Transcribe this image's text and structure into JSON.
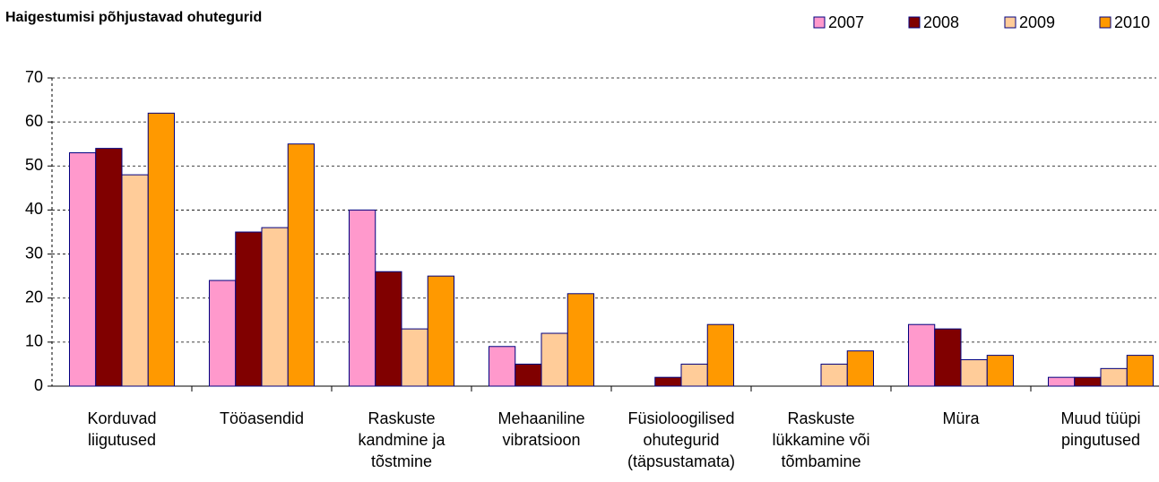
{
  "chart_data": {
    "type": "bar",
    "title": "Haigestumisi põhjustavad ohutegurid",
    "categories": [
      "Korduvad\nliigutused",
      "Tööasendid",
      "Raskuste\nkandmine ja\ntõstmine",
      "Mehaaniline\nvibratsioon",
      "Füsioloogilised\nohutegurid\n(täpsustamata)",
      "Raskuste\nlükkamine või\ntõmbamine",
      "Müra",
      "Muud tüüpi\npingutused"
    ],
    "series": [
      {
        "name": "2007",
        "color": "#ff99cc",
        "values": [
          53,
          24,
          40,
          9,
          0,
          0,
          14,
          2
        ]
      },
      {
        "name": "2008",
        "color": "#800000",
        "values": [
          54,
          35,
          26,
          5,
          2,
          0,
          13,
          2
        ]
      },
      {
        "name": "2009",
        "color": "#ffcc99",
        "values": [
          48,
          36,
          13,
          12,
          5,
          5,
          6,
          4
        ]
      },
      {
        "name": "2010",
        "color": "#ff9900",
        "values": [
          62,
          55,
          25,
          21,
          14,
          8,
          7,
          7
        ]
      }
    ],
    "ylim": [
      0,
      70
    ],
    "yticks": [
      0,
      10,
      20,
      30,
      40,
      50,
      60,
      70
    ],
    "grid": true,
    "legend": "top-right"
  }
}
